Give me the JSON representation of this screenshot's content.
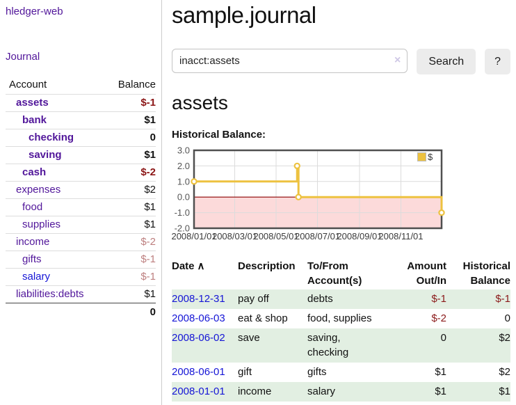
{
  "app": {
    "title": "hledger-web"
  },
  "sidebar": {
    "journal_link": "Journal",
    "table": {
      "account_header": "Account",
      "balance_header": "Balance",
      "rows": [
        {
          "name": "assets",
          "balance": "$-1",
          "level": 1,
          "bold": true,
          "tone": "neg"
        },
        {
          "name": "bank",
          "balance": "$1",
          "level": 2,
          "bold": true,
          "tone": ""
        },
        {
          "name": "checking",
          "balance": "0",
          "level": 3,
          "bold": true,
          "tone": ""
        },
        {
          "name": "saving",
          "balance": "$1",
          "level": 3,
          "bold": true,
          "tone": ""
        },
        {
          "name": "cash",
          "balance": "$-2",
          "level": 2,
          "bold": true,
          "tone": "neg"
        },
        {
          "name": "expenses",
          "balance": "$2",
          "level": 1,
          "bold": false,
          "tone": ""
        },
        {
          "name": "food",
          "balance": "$1",
          "level": 2,
          "bold": false,
          "tone": ""
        },
        {
          "name": "supplies",
          "balance": "$1",
          "level": 2,
          "bold": false,
          "tone": ""
        },
        {
          "name": "income",
          "balance": "$-2",
          "level": 1,
          "bold": false,
          "tone": "neg-light"
        },
        {
          "name": "gifts",
          "balance": "$-1",
          "level": 2,
          "bold": false,
          "tone": "neg-light"
        },
        {
          "name": "salary",
          "balance": "$-1",
          "level": 2,
          "bold": false,
          "tone": "neg-light",
          "link_style": "blue"
        },
        {
          "name": "liabilities:debts",
          "balance": "$1",
          "level": 1,
          "bold": false,
          "tone": ""
        }
      ],
      "total": "0"
    }
  },
  "header": {
    "title": "sample.journal"
  },
  "search": {
    "value": "inacct:assets",
    "clear_icon": "×",
    "button_label": "Search",
    "help_label": "?"
  },
  "account_page": {
    "heading": "assets",
    "chart_label": "Historical Balance:"
  },
  "chart_data": {
    "type": "line",
    "style": "step-after",
    "title": "Historical Balance:",
    "series": [
      {
        "name": "$",
        "color": "#edc240",
        "points": [
          [
            "2008-01-01",
            1
          ],
          [
            "2008-06-01",
            2
          ],
          [
            "2008-06-03",
            0
          ],
          [
            "2008-12-31",
            -1
          ]
        ]
      }
    ],
    "x_ticks": [
      "2008/01/01",
      "2008/03/01",
      "2008/05/01",
      "2008/07/01",
      "2008/09/01",
      "2008/11/01"
    ],
    "y_ticks": [
      "3.0",
      "2.0",
      "1.0",
      "0.0",
      "-1.0",
      "-2.0"
    ],
    "ylim": [
      -2,
      3
    ],
    "xlim": [
      "2008-01-01",
      "2008-12-31"
    ],
    "legend": {
      "label": "$",
      "position": "top-right"
    },
    "grid": true,
    "colors": {
      "line": "#edc240",
      "negative_region": "#fcdada",
      "zero_line": "#8b0000",
      "border": "#4f4f4f",
      "gridline": "#dcdcdc"
    }
  },
  "register": {
    "headers": {
      "date": "Date",
      "sort_icon": "∧",
      "description": "Description",
      "accounts": [
        "To/From",
        "Account(s)"
      ],
      "amount": [
        "Amount",
        "Out/In"
      ],
      "balance": [
        "Historical",
        "Balance"
      ]
    },
    "rows": [
      {
        "date": "2008-12-31",
        "description": "pay off",
        "accounts": [
          "debts"
        ],
        "amount": "$-1",
        "amount_negative": true,
        "balance": "$-1",
        "balance_negative": true,
        "shaded": true
      },
      {
        "date": "2008-06-03",
        "description": "eat & shop",
        "accounts": [
          "food, supplies"
        ],
        "amount": "$-2",
        "amount_negative": true,
        "balance": "0",
        "balance_negative": false,
        "shaded": false
      },
      {
        "date": "2008-06-02",
        "description": "save",
        "accounts": [
          "saving,",
          "checking"
        ],
        "amount": "0",
        "amount_negative": false,
        "balance": "$2",
        "balance_negative": false,
        "shaded": true
      },
      {
        "date": "2008-06-01",
        "description": "gift",
        "accounts": [
          "gifts"
        ],
        "amount": "$1",
        "amount_negative": false,
        "balance": "$2",
        "balance_negative": false,
        "shaded": false
      },
      {
        "date": "2008-01-01",
        "description": "income",
        "accounts": [
          "salary"
        ],
        "amount": "$1",
        "amount_negative": false,
        "balance": "$1",
        "balance_negative": false,
        "shaded": true
      }
    ]
  }
}
